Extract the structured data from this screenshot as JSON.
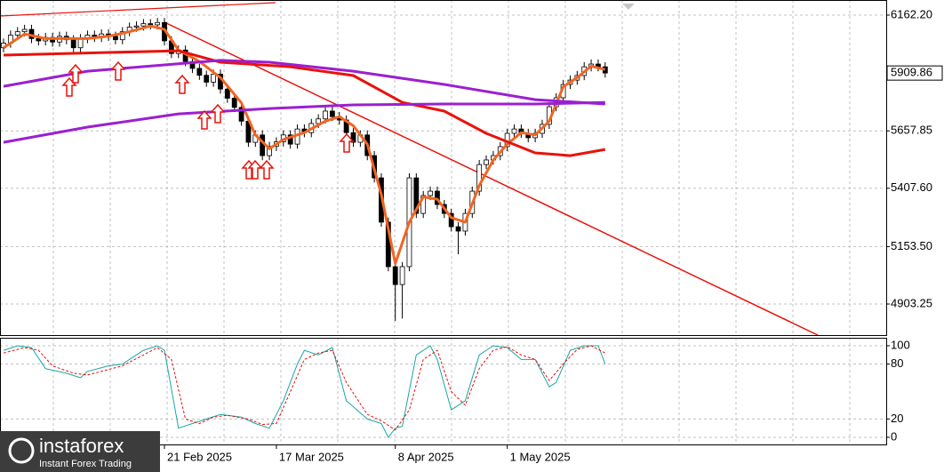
{
  "chart_data": [
    {
      "type": "candlestick",
      "categories": [
        null,
        null,
        null,
        null,
        null,
        null,
        null,
        null,
        null,
        null,
        null,
        null,
        null,
        null,
        null,
        null,
        null,
        null,
        null,
        null,
        null,
        null,
        null,
        "21 Feb 2025",
        null,
        null,
        null,
        null,
        null,
        null,
        null,
        null,
        null,
        null,
        null,
        null,
        null,
        null,
        null,
        "17 Mar 2025",
        null,
        null,
        null,
        null,
        null,
        null,
        null,
        null,
        null,
        null,
        null,
        null,
        null,
        null,
        null,
        null,
        "8 Apr 2025",
        null,
        null,
        null,
        null,
        null,
        null,
        null,
        null,
        null,
        null,
        null,
        null,
        null,
        null,
        null,
        "1 May 2025",
        null,
        null,
        null,
        null,
        null,
        null,
        null,
        null,
        null,
        null,
        null,
        null,
        null,
        null
      ],
      "open": [
        6020,
        6040,
        6075,
        6090,
        6100,
        6060,
        6050,
        6065,
        6045,
        6070,
        6055,
        6020,
        6060,
        6075,
        6065,
        6080,
        6070,
        6055,
        6090,
        6110,
        6115,
        6125,
        6120,
        6130,
        6050,
        5995,
        6010,
        5960,
        5930,
        5900,
        5870,
        5905,
        5840,
        5800,
        5760,
        5700,
        5608,
        5640,
        5550,
        5590,
        5610,
        5640,
        5600,
        5666,
        5650,
        5690,
        5710,
        5744,
        5720,
        5705,
        5650,
        5608,
        5640,
        5550,
        5453,
        5260,
        5066,
        4988,
        5066,
        5453,
        5298,
        5376,
        5395,
        5337,
        5298,
        5240,
        5221,
        5298,
        5395,
        5511,
        5531,
        5550,
        5589,
        5647,
        5666,
        5647,
        5628,
        5647,
        5686,
        5763,
        5802,
        5860,
        5879,
        5899,
        5937,
        5949,
        5937
      ],
      "high": [
        6060,
        6095,
        6110,
        6120,
        6120,
        6080,
        6085,
        6085,
        6090,
        6090,
        6075,
        6080,
        6095,
        6095,
        6100,
        6100,
        6090,
        6110,
        6130,
        6135,
        6145,
        6145,
        6150,
        6150,
        6070,
        6030,
        6030,
        5980,
        5950,
        5920,
        5925,
        5925,
        5860,
        5820,
        5780,
        5720,
        5660,
        5660,
        5610,
        5630,
        5660,
        5660,
        5686,
        5686,
        5710,
        5730,
        5764,
        5764,
        5740,
        5725,
        5670,
        5660,
        5660,
        5570,
        5473,
        5280,
        5086,
        5086,
        5473,
        5473,
        5396,
        5415,
        5415,
        5357,
        5318,
        5260,
        5318,
        5415,
        5531,
        5551,
        5570,
        5609,
        5667,
        5686,
        5686,
        5667,
        5667,
        5706,
        5783,
        5822,
        5880,
        5899,
        5919,
        5957,
        5969,
        5969,
        5957
      ],
      "low": [
        6000,
        6020,
        6055,
        6070,
        6040,
        6030,
        6030,
        6025,
        6025,
        6035,
        6000,
        6000,
        6040,
        6045,
        6045,
        6050,
        6035,
        6035,
        6070,
        6090,
        6095,
        6100,
        6100,
        6030,
        5975,
        5975,
        5940,
        5910,
        5880,
        5850,
        5850,
        5820,
        5780,
        5740,
        5680,
        5588,
        5588,
        5530,
        5530,
        5570,
        5590,
        5580,
        5580,
        5630,
        5630,
        5670,
        5690,
        5700,
        5685,
        5630,
        5588,
        5588,
        5530,
        5433,
        5240,
        5046,
        4830,
        4840,
        5046,
        5278,
        5278,
        5356,
        5317,
        5278,
        5220,
        5120,
        5201,
        5278,
        5375,
        5491,
        5511,
        5530,
        5569,
        5627,
        5627,
        5608,
        5608,
        5627,
        5666,
        5743,
        5782,
        5840,
        5859,
        5879,
        5917,
        5917,
        5890
      ],
      "close": [
        6040,
        6075,
        6090,
        6100,
        6060,
        6050,
        6065,
        6045,
        6070,
        6055,
        6020,
        6060,
        6075,
        6065,
        6080,
        6070,
        6055,
        6090,
        6110,
        6115,
        6125,
        6120,
        6130,
        6050,
        5995,
        6010,
        5960,
        5930,
        5900,
        5870,
        5905,
        5840,
        5800,
        5760,
        5700,
        5608,
        5640,
        5550,
        5590,
        5610,
        5640,
        5600,
        5666,
        5650,
        5690,
        5710,
        5744,
        5720,
        5705,
        5650,
        5608,
        5640,
        5550,
        5453,
        5260,
        5066,
        4988,
        5066,
        5453,
        5298,
        5376,
        5395,
        5337,
        5298,
        5240,
        5221,
        5298,
        5395,
        5511,
        5531,
        5550,
        5589,
        5647,
        5666,
        5647,
        5628,
        5647,
        5686,
        5763,
        5802,
        5860,
        5879,
        5899,
        5937,
        5949,
        5937,
        5910
      ],
      "up_color": "#ffffff",
      "down_color": "#000000",
      "series": [
        {
          "color": "#f26522",
          "x": [
            0,
            3,
            6,
            9,
            12,
            15,
            18,
            21,
            23,
            25,
            28,
            31,
            34,
            36,
            38,
            40,
            43,
            46,
            48,
            50,
            52,
            54,
            56,
            58,
            60,
            62,
            64,
            66,
            68,
            70,
            72,
            74,
            76,
            78,
            80,
            82,
            84,
            86
          ],
          "values": [
            6020,
            6080,
            6060,
            6060,
            6060,
            6070,
            6090,
            6115,
            6100,
            6010,
            5960,
            5890,
            5780,
            5640,
            5580,
            5620,
            5650,
            5700,
            5720,
            5680,
            5600,
            5380,
            5080,
            5260,
            5370,
            5360,
            5280,
            5260,
            5420,
            5530,
            5600,
            5650,
            5640,
            5700,
            5850,
            5890,
            5940,
            5925
          ]
        },
        {
          "color": "#e8120c",
          "x": [
            0,
            25,
            31,
            41,
            50,
            57,
            63,
            69,
            76,
            81,
            86
          ],
          "values": [
            5988,
            6007,
            5957,
            5937,
            5899,
            5782,
            5744,
            5647,
            5562,
            5550,
            5577
          ]
        },
        {
          "color": "#9b1fd1",
          "x": [
            0,
            12,
            31,
            38,
            50,
            63,
            76,
            86
          ],
          "values": [
            5852,
            5918,
            5965,
            5957,
            5918,
            5860,
            5794,
            5775
          ]
        },
        {
          "color": "#9b1fd1",
          "x": [
            0,
            12,
            25,
            38,
            50,
            63,
            76,
            86
          ],
          "values": [
            5608,
            5674,
            5732,
            5755,
            5771,
            5775,
            5775,
            5782
          ]
        }
      ],
      "ylim": [
        4767.7,
        6228.1
      ],
      "yticks": [
        {
          "value": 6162.2,
          "label": "6162.20"
        },
        {
          "value": 5657.85,
          "label": "5657.85"
        },
        {
          "value": 5407.6,
          "label": "5407.60"
        },
        {
          "value": 5153.5,
          "label": "5153.50"
        },
        {
          "value": 4903.25,
          "label": "4903.25"
        }
      ],
      "last_price": {
        "value": 5909.86,
        "label": "5909.86"
      },
      "grid": true
    },
    {
      "type": "line",
      "series": [
        {
          "color": "#1aa6a6",
          "x": [
            0,
            2,
            4,
            6,
            9,
            11,
            12,
            15,
            17,
            20,
            22,
            23,
            25,
            27,
            29,
            31,
            34,
            36,
            38,
            40,
            42,
            43,
            45,
            47,
            49,
            52,
            54,
            55,
            56,
            57,
            59,
            61,
            62,
            64,
            66,
            68,
            70,
            72,
            74,
            76,
            78,
            79,
            81,
            83,
            85,
            86
          ],
          "values": [
            95,
            100,
            98,
            75,
            70,
            65,
            72,
            78,
            80,
            95,
            100,
            95,
            10,
            15,
            20,
            25,
            22,
            15,
            10,
            40,
            80,
            95,
            90,
            98,
            40,
            20,
            15,
            0,
            10,
            12,
            90,
            100,
            85,
            30,
            40,
            90,
            100,
            98,
            85,
            85,
            55,
            60,
            95,
            100,
            100,
            80
          ]
        },
        {
          "color": "#e8120c",
          "dashed": true,
          "x": [
            0,
            3,
            5,
            7,
            10,
            12,
            15,
            17,
            20,
            22,
            24,
            26,
            28,
            30,
            32,
            35,
            37,
            39,
            41,
            43,
            45,
            47,
            49,
            52,
            54,
            56,
            58,
            60,
            62,
            64,
            66,
            68,
            70,
            72,
            74,
            76,
            78,
            80,
            82,
            84,
            86
          ],
          "values": [
            92,
            98,
            95,
            78,
            70,
            68,
            74,
            78,
            90,
            98,
            85,
            20,
            15,
            22,
            24,
            20,
            14,
            15,
            50,
            85,
            92,
            95,
            60,
            25,
            18,
            8,
            30,
            85,
            95,
            50,
            35,
            75,
            95,
            99,
            90,
            85,
            62,
            80,
            96,
            100,
            92
          ]
        }
      ],
      "ylim": [
        -7.8,
        108.7
      ],
      "yticks": [
        100,
        80,
        20,
        0
      ]
    }
  ],
  "watermark": {
    "brand": "instaforex",
    "tagline": "Instant Forex Trading"
  }
}
